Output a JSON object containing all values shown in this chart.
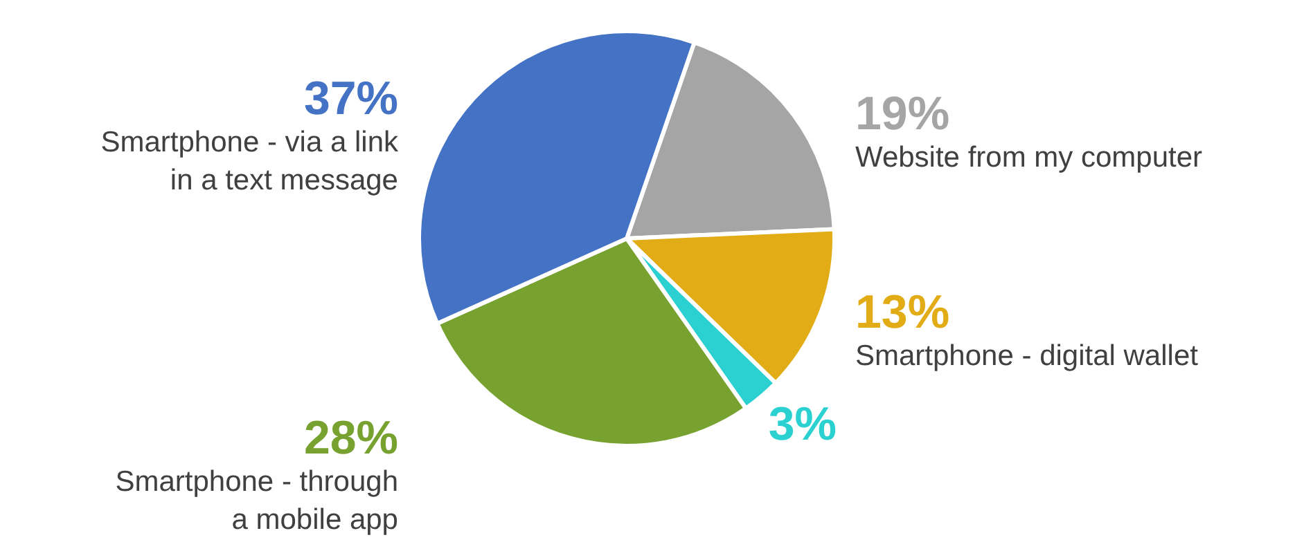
{
  "chart_data": {
    "type": "pie",
    "categories": [
      "Website from my computer",
      "Smartphone - digital wallet",
      null,
      "Smartphone - through\na mobile app",
      "Smartphone - via a link\nin a text message"
    ],
    "values": [
      19,
      13,
      3,
      28,
      37
    ],
    "value_labels": [
      "19%",
      "13%",
      "3%",
      "28%",
      "37%"
    ],
    "colors": [
      "#a5a5a5",
      "#e2ac16",
      "#2bd1d1",
      "#77a22f",
      "#4472c4"
    ]
  }
}
